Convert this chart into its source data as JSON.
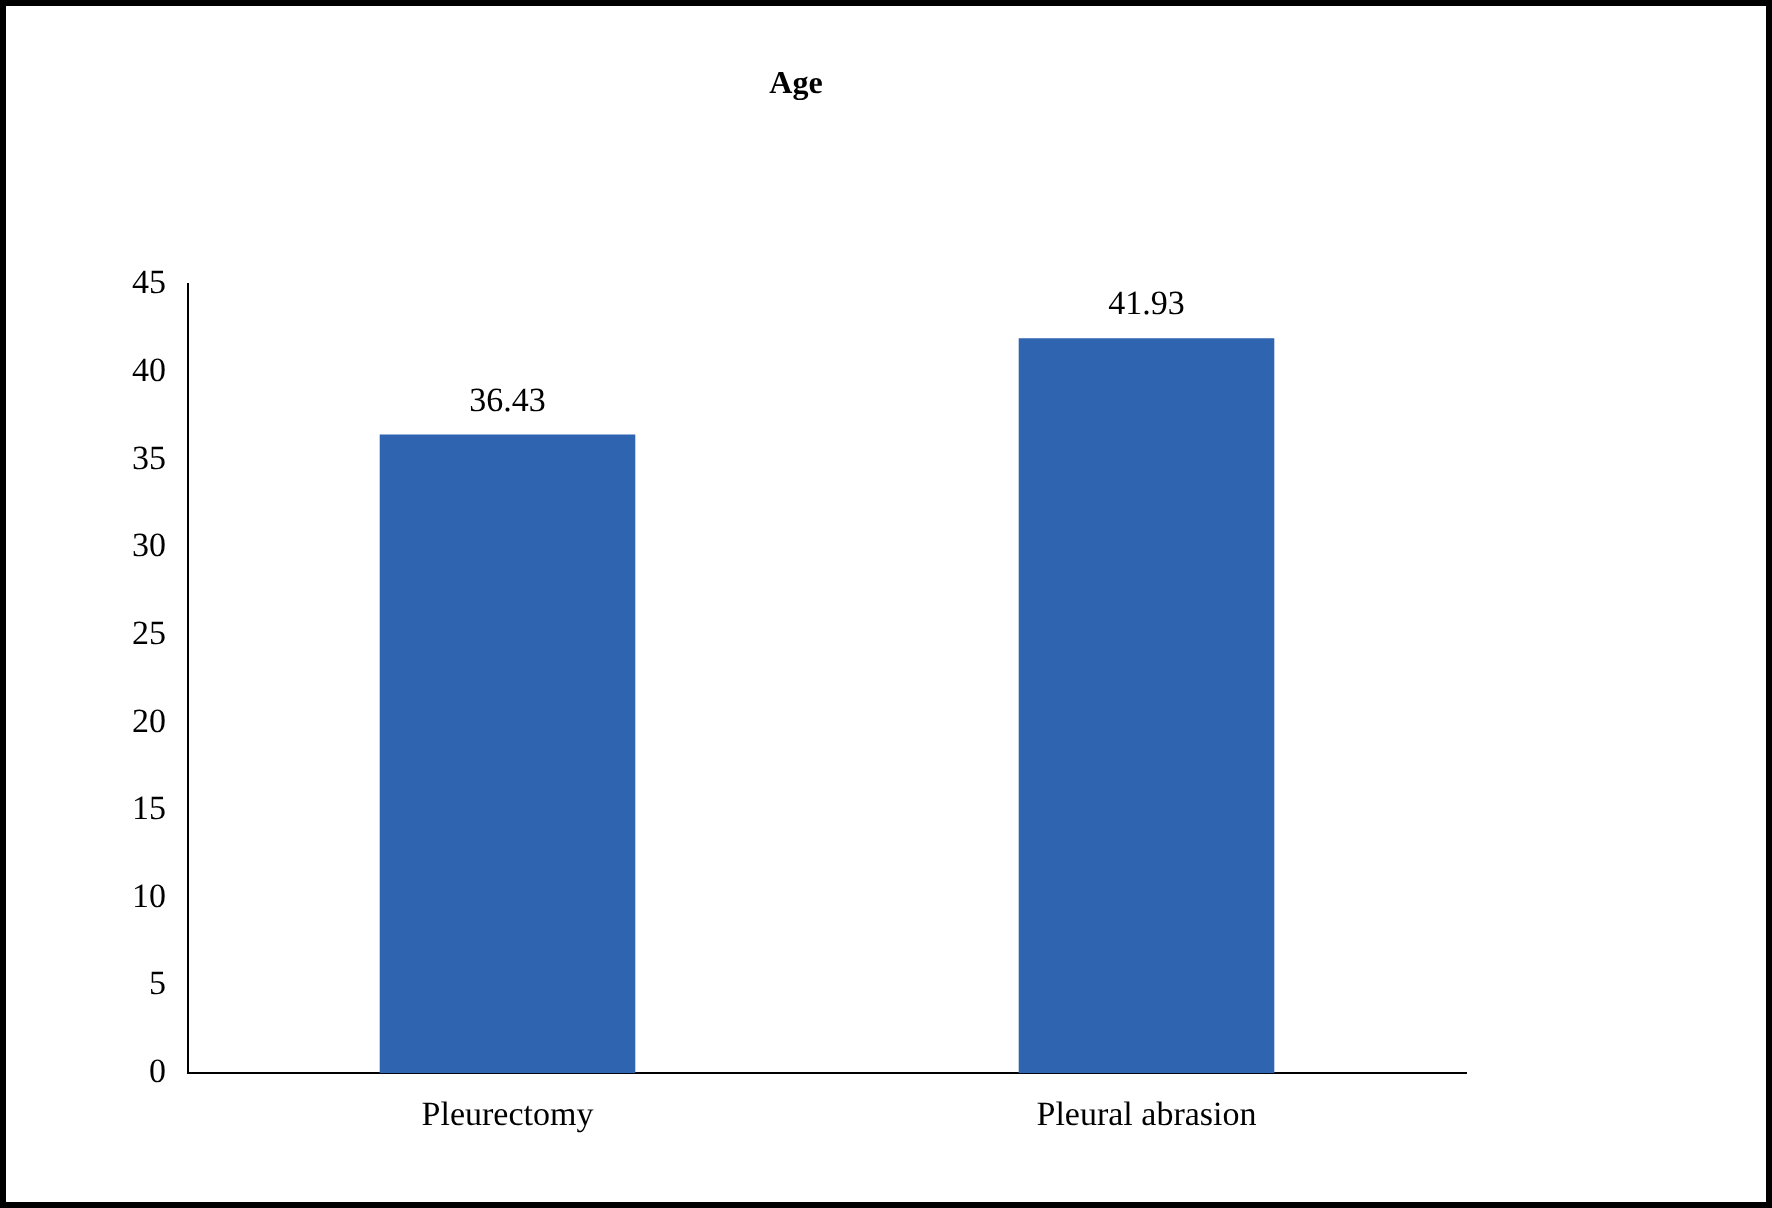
{
  "chart_data": {
    "type": "bar",
    "title": "Age",
    "categories": [
      "Pleurectomy",
      "Pleural abrasion"
    ],
    "values": [
      36.43,
      41.93
    ],
    "color": "#2e64b0",
    "data_labels": true,
    "ylim": [
      0,
      45
    ],
    "yticks": [
      0,
      5,
      10,
      15,
      20,
      25,
      30,
      35,
      40,
      45
    ],
    "grid": false,
    "legend": false
  }
}
